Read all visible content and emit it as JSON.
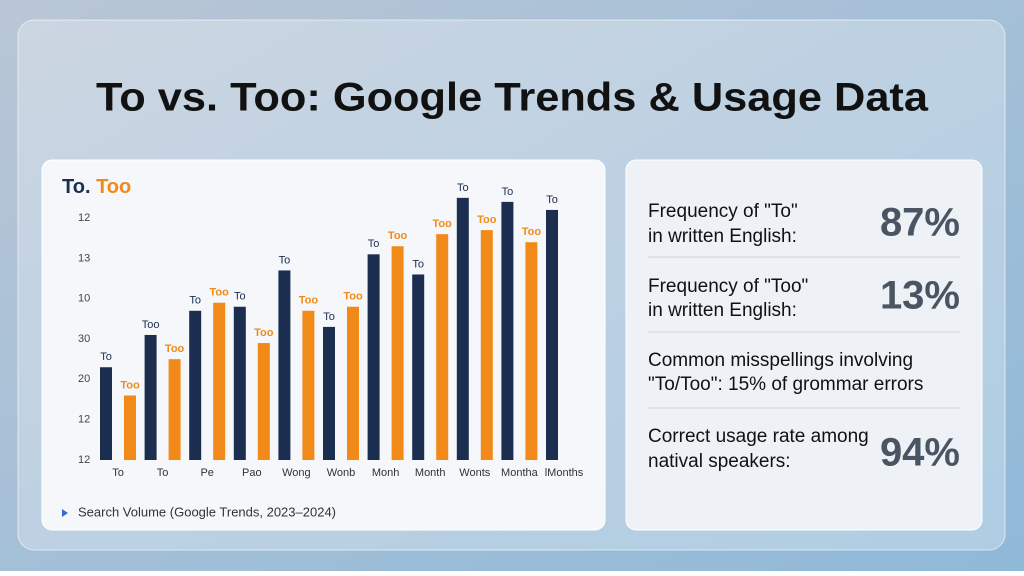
{
  "page_title": "To vs. Too: Google Trends & Usage Data",
  "chart_data": {
    "type": "bar",
    "title": [
      "To.",
      "Too"
    ],
    "caption": "Search Volume (Google Trends, 2023–2024)",
    "categories": [
      "To",
      "To",
      "Pe",
      "Pao",
      "Wong",
      "Wonb",
      "Monh",
      "Month",
      "Wonts",
      "Montha",
      "lMonths"
    ],
    "series": [
      {
        "name": "To",
        "color": "#1b2e4f",
        "values": [
          2.3,
          3.1,
          3.7,
          3.8,
          4.7,
          3.3,
          5.1,
          4.6,
          6.5,
          6.4,
          6.2
        ],
        "bar_labels": [
          "To",
          "Too",
          "To",
          "To",
          "To",
          "To",
          "To",
          "To",
          "To",
          "To",
          "To"
        ]
      },
      {
        "name": "Too",
        "color": "#f28a1a",
        "values": [
          1.6,
          2.5,
          3.9,
          2.9,
          3.7,
          3.8,
          5.3,
          5.6,
          5.7,
          5.4,
          null
        ],
        "bar_labels": [
          "Too",
          "Too",
          "Too",
          "Too",
          "Too",
          "Too",
          "Too",
          "Too",
          "Too",
          "Too",
          null
        ]
      }
    ],
    "ylim": [
      0,
      6.6
    ],
    "yticks": [
      {
        "value": 0,
        "label": "12"
      },
      {
        "value": 1,
        "label": "12"
      },
      {
        "value": 2,
        "label": "20"
      },
      {
        "value": 3,
        "label": "30"
      },
      {
        "value": 4,
        "label": "10"
      },
      {
        "value": 5,
        "label": "13"
      },
      {
        "value": 6,
        "label": "12"
      }
    ]
  },
  "stats": [
    {
      "label": [
        "Frequency of \"To\"",
        "in written English:"
      ],
      "value": "87%"
    },
    {
      "label": [
        "Frequency of \"Too\"",
        "in written English:"
      ],
      "value": "13%"
    },
    {
      "label": [
        "Common misspellings involving",
        "\"To/Too\": 15% of grommar errors"
      ]
    },
    {
      "label": [
        "Correct usage rate among",
        "natival speakers:"
      ],
      "value": "94%"
    }
  ]
}
